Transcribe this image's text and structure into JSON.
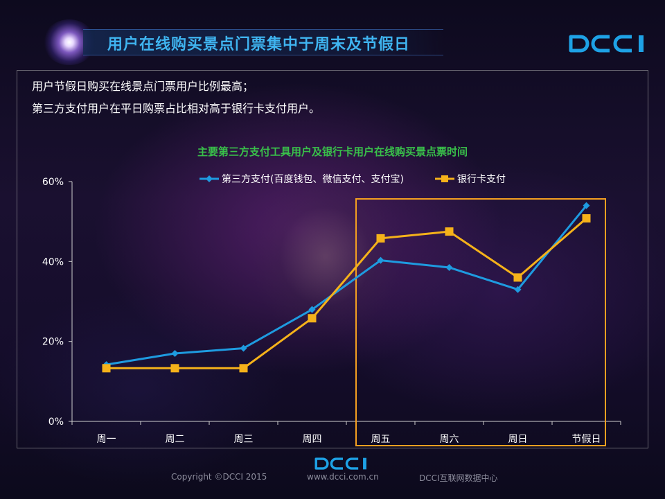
{
  "header": {
    "title": "用户在线购买景点门票集中于周末及节假日",
    "logo": "DCCI"
  },
  "description": {
    "line1": "用户节假日购买在线景点门票用户比例最高；",
    "line2": "第三方支付用户在平日购票占比相对高于银行卡支付用户。"
  },
  "chart_data": {
    "type": "line",
    "title": "主要第三方支付工具用户及银行卡用户在线购买景点票时间",
    "categories": [
      "周一",
      "周二",
      "周三",
      "周四",
      "周五",
      "周六",
      "周日",
      "节假日"
    ],
    "series": [
      {
        "name": "第三方支付(百度钱包、微信支付、支付宝)",
        "values": [
          14.2,
          17.0,
          18.3,
          28.0,
          40.3,
          38.5,
          33.0,
          54.0
        ],
        "color": "#1e9be0",
        "marker": "diamond"
      },
      {
        "name": "银行卡支付",
        "values": [
          13.3,
          13.3,
          13.3,
          25.8,
          45.8,
          47.5,
          36.0,
          50.8
        ],
        "color": "#f5b21a",
        "marker": "square"
      }
    ],
    "yticks": [
      "0%",
      "20%",
      "40%",
      "60%"
    ],
    "ylim": [
      0,
      60
    ],
    "legend": "top",
    "grid": false,
    "highlight_box": {
      "from": "周五",
      "to": "节假日",
      "color": "#f5a020"
    }
  },
  "footer": {
    "copyright": "Copyright ©DCCI 2015",
    "url": "www.dcci.com.cn",
    "org": "DCCI互联网数据中心",
    "logo": "DCCI"
  }
}
